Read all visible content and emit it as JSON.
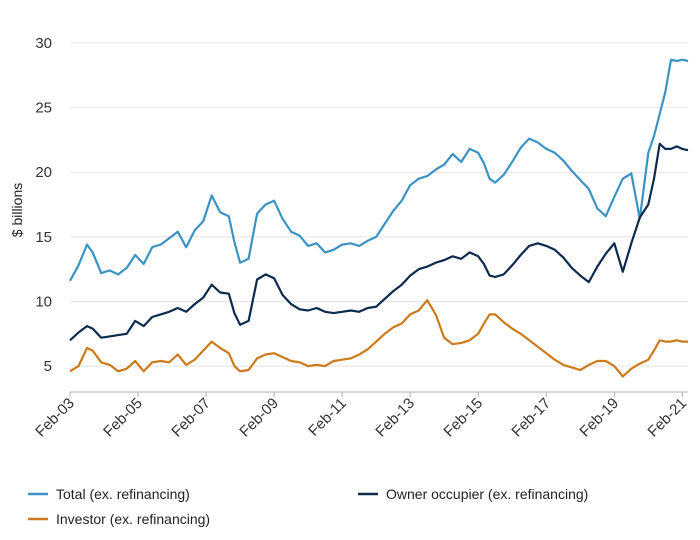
{
  "chart_data": {
    "type": "line",
    "ylabel": "$ billions",
    "ylim": [
      3,
      31
    ],
    "yticks": [
      5,
      10,
      15,
      20,
      25,
      30
    ],
    "xticks": [
      "Feb-03",
      "Feb-05",
      "Feb-07",
      "Feb-09",
      "Feb-11",
      "Feb-13",
      "Feb-15",
      "Feb-17",
      "Feb-19",
      "Feb-21"
    ],
    "xlim": [
      "2003-02",
      "2021-04"
    ],
    "grid": "horizontal",
    "legend_position": "bottom",
    "series": [
      {
        "name": "Total (ex. refinancing)",
        "color": "#3b93c3",
        "x": [
          "2003-02",
          "2003-05",
          "2003-08",
          "2003-10",
          "2004-01",
          "2004-04",
          "2004-07",
          "2004-10",
          "2005-01",
          "2005-04",
          "2005-07",
          "2005-10",
          "2006-01",
          "2006-04",
          "2006-07",
          "2006-10",
          "2007-01",
          "2007-04",
          "2007-07",
          "2007-10",
          "2007-12",
          "2008-02",
          "2008-05",
          "2008-08",
          "2008-11",
          "2009-02",
          "2009-05",
          "2009-08",
          "2009-11",
          "2010-02",
          "2010-05",
          "2010-08",
          "2010-11",
          "2011-02",
          "2011-05",
          "2011-08",
          "2011-11",
          "2012-02",
          "2012-05",
          "2012-08",
          "2012-11",
          "2013-02",
          "2013-05",
          "2013-08",
          "2013-11",
          "2014-02",
          "2014-05",
          "2014-08",
          "2014-11",
          "2015-02",
          "2015-04",
          "2015-06",
          "2015-08",
          "2015-11",
          "2016-02",
          "2016-05",
          "2016-08",
          "2016-11",
          "2017-02",
          "2017-05",
          "2017-08",
          "2017-11",
          "2018-02",
          "2018-05",
          "2018-08",
          "2018-11",
          "2019-02",
          "2019-05",
          "2019-08",
          "2019-11",
          "2020-02",
          "2020-04",
          "2020-06",
          "2020-08",
          "2020-10",
          "2020-12",
          "2021-02",
          "2021-04"
        ],
        "values": [
          11.6,
          12.8,
          14.4,
          13.8,
          12.2,
          12.4,
          12.1,
          12.6,
          13.6,
          12.9,
          14.2,
          14.4,
          14.9,
          15.4,
          14.2,
          15.5,
          16.2,
          18.2,
          16.9,
          16.6,
          14.6,
          13.0,
          13.3,
          16.8,
          17.5,
          17.8,
          16.4,
          15.4,
          15.1,
          14.3,
          14.5,
          13.8,
          14.0,
          14.4,
          14.5,
          14.3,
          14.7,
          15.0,
          16.0,
          17.0,
          17.8,
          19.0,
          19.5,
          19.7,
          20.2,
          20.6,
          21.4,
          20.8,
          21.8,
          21.5,
          20.7,
          19.5,
          19.2,
          19.8,
          20.8,
          21.9,
          22.6,
          22.3,
          21.8,
          21.5,
          20.9,
          20.1,
          19.4,
          18.7,
          17.2,
          16.6,
          18.1,
          19.5,
          19.9,
          16.4,
          21.5,
          22.8,
          24.5,
          26.2,
          28.7,
          28.6,
          28.7,
          28.6
        ]
      },
      {
        "name": "Owner occupier (ex. refinancing)",
        "color": "#0d2a4f",
        "x": [
          "2003-02",
          "2003-05",
          "2003-08",
          "2003-10",
          "2004-01",
          "2004-04",
          "2004-07",
          "2004-10",
          "2005-01",
          "2005-04",
          "2005-07",
          "2005-10",
          "2006-01",
          "2006-04",
          "2006-07",
          "2006-10",
          "2007-01",
          "2007-04",
          "2007-07",
          "2007-10",
          "2007-12",
          "2008-02",
          "2008-05",
          "2008-08",
          "2008-11",
          "2009-02",
          "2009-05",
          "2009-08",
          "2009-11",
          "2010-02",
          "2010-05",
          "2010-08",
          "2010-11",
          "2011-02",
          "2011-05",
          "2011-08",
          "2011-11",
          "2012-02",
          "2012-05",
          "2012-08",
          "2012-11",
          "2013-02",
          "2013-05",
          "2013-08",
          "2013-11",
          "2014-02",
          "2014-05",
          "2014-08",
          "2014-11",
          "2015-02",
          "2015-04",
          "2015-06",
          "2015-08",
          "2015-11",
          "2016-02",
          "2016-05",
          "2016-08",
          "2016-11",
          "2017-02",
          "2017-05",
          "2017-08",
          "2017-11",
          "2018-02",
          "2018-05",
          "2018-08",
          "2018-11",
          "2019-02",
          "2019-05",
          "2019-08",
          "2019-11",
          "2020-02",
          "2020-04",
          "2020-06",
          "2020-08",
          "2020-10",
          "2020-12",
          "2021-02",
          "2021-04"
        ],
        "values": [
          7.0,
          7.6,
          8.1,
          7.9,
          7.2,
          7.3,
          7.4,
          7.5,
          8.5,
          8.1,
          8.8,
          9.0,
          9.2,
          9.5,
          9.2,
          9.8,
          10.3,
          11.3,
          10.7,
          10.6,
          9.1,
          8.2,
          8.5,
          11.7,
          12.1,
          11.8,
          10.5,
          9.8,
          9.4,
          9.3,
          9.5,
          9.2,
          9.1,
          9.2,
          9.3,
          9.2,
          9.5,
          9.6,
          10.2,
          10.8,
          11.3,
          12.0,
          12.5,
          12.7,
          13.0,
          13.2,
          13.5,
          13.3,
          13.8,
          13.5,
          12.9,
          12.0,
          11.9,
          12.1,
          12.8,
          13.6,
          14.3,
          14.5,
          14.3,
          14.0,
          13.4,
          12.6,
          12.0,
          11.5,
          12.7,
          13.7,
          14.5,
          12.3,
          14.5,
          16.5,
          17.5,
          19.5,
          22.2,
          21.8,
          21.8,
          22.0,
          21.8,
          21.7
        ]
      },
      {
        "name": "Investor (ex. refinancing)",
        "color": "#cc7a1a",
        "x": [
          "2003-02",
          "2003-05",
          "2003-08",
          "2003-10",
          "2004-01",
          "2004-04",
          "2004-07",
          "2004-10",
          "2005-01",
          "2005-04",
          "2005-07",
          "2005-10",
          "2006-01",
          "2006-04",
          "2006-07",
          "2006-10",
          "2007-01",
          "2007-04",
          "2007-07",
          "2007-10",
          "2007-12",
          "2008-02",
          "2008-05",
          "2008-08",
          "2008-11",
          "2009-02",
          "2009-05",
          "2009-08",
          "2009-11",
          "2010-02",
          "2010-05",
          "2010-08",
          "2010-11",
          "2011-02",
          "2011-05",
          "2011-08",
          "2011-11",
          "2012-02",
          "2012-05",
          "2012-08",
          "2012-11",
          "2013-02",
          "2013-05",
          "2013-08",
          "2013-11",
          "2014-02",
          "2014-05",
          "2014-08",
          "2014-11",
          "2015-02",
          "2015-04",
          "2015-06",
          "2015-08",
          "2015-11",
          "2016-02",
          "2016-05",
          "2016-08",
          "2016-11",
          "2017-02",
          "2017-05",
          "2017-08",
          "2017-11",
          "2018-02",
          "2018-05",
          "2018-08",
          "2018-11",
          "2019-02",
          "2019-05",
          "2019-08",
          "2019-11",
          "2020-02",
          "2020-04",
          "2020-06",
          "2020-08",
          "2020-10",
          "2020-12",
          "2021-02",
          "2021-04"
        ],
        "values": [
          4.6,
          5.0,
          6.4,
          6.2,
          5.3,
          5.1,
          4.6,
          4.8,
          5.4,
          4.6,
          5.3,
          5.4,
          5.3,
          5.9,
          5.1,
          5.5,
          6.2,
          6.9,
          6.4,
          6.0,
          5.0,
          4.6,
          4.7,
          5.6,
          5.9,
          6.0,
          5.7,
          5.4,
          5.3,
          5.0,
          5.1,
          5.0,
          5.4,
          5.5,
          5.6,
          5.9,
          6.3,
          6.9,
          7.5,
          8.0,
          8.3,
          9.0,
          9.3,
          10.1,
          9.0,
          7.2,
          6.7,
          6.8,
          7.0,
          7.5,
          8.3,
          9.0,
          9.0,
          8.4,
          7.9,
          7.5,
          7.0,
          6.5,
          6.0,
          5.5,
          5.1,
          4.9,
          4.7,
          5.1,
          5.4,
          5.4,
          5.0,
          4.2,
          4.8,
          5.2,
          5.5,
          6.2,
          7.0,
          6.9,
          6.9,
          7.0,
          6.9,
          6.9
        ]
      }
    ]
  }
}
